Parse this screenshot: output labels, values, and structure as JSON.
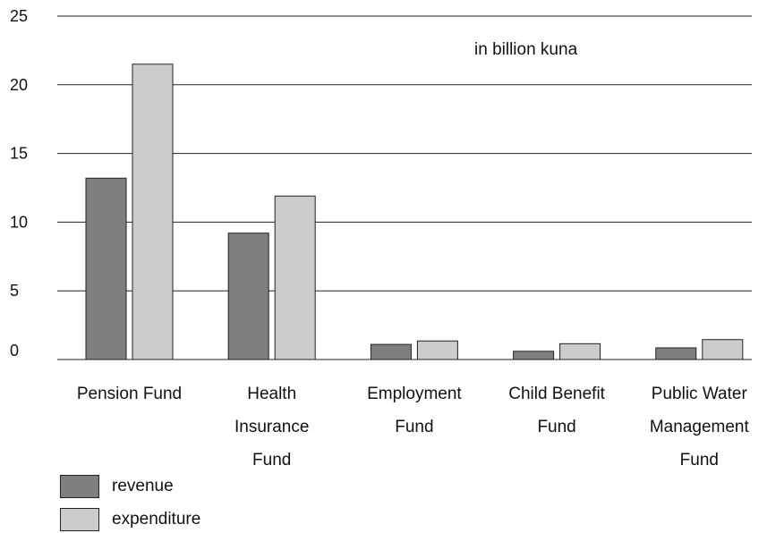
{
  "chart_data": {
    "type": "bar",
    "unit_label": "in billion kuna",
    "categories": [
      [
        "Pension Fund"
      ],
      [
        "Health",
        "Insurance",
        "Fund"
      ],
      [
        "Employment",
        "Fund"
      ],
      [
        "Child Benefit",
        "Fund"
      ],
      [
        "Public Water",
        "Management",
        "Fund"
      ]
    ],
    "series": [
      {
        "name": "revenue",
        "color": "#7f7f7f",
        "values": [
          13.2,
          9.2,
          1.1,
          0.6,
          0.85
        ]
      },
      {
        "name": "expenditure",
        "color": "#cccccc",
        "values": [
          21.5,
          11.9,
          1.35,
          1.15,
          1.45
        ]
      }
    ],
    "ylim": [
      0,
      25
    ],
    "yticks": [
      0,
      5,
      10,
      15,
      20,
      25
    ],
    "grid": true,
    "legend_position": "bottom-left"
  }
}
